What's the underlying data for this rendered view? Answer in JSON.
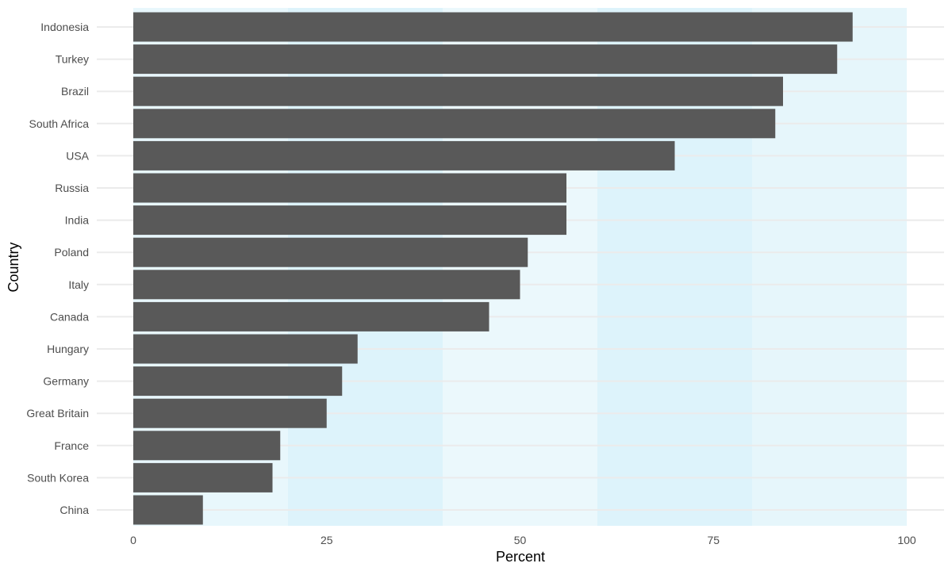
{
  "chart_data": {
    "type": "bar",
    "orientation": "horizontal",
    "xlabel": "Percent",
    "ylabel": "Country",
    "xlim": [
      0,
      100
    ],
    "x_ticks": [
      "0",
      "25",
      "50",
      "75",
      "100"
    ],
    "categories": [
      "Indonesia",
      "Turkey",
      "Brazil",
      "South Africa",
      "USA",
      "Russia",
      "India",
      "Poland",
      "Italy",
      "Canada",
      "Hungary",
      "Germany",
      "Great Britain",
      "France",
      "South Korea",
      "China"
    ],
    "values": [
      93,
      91,
      84,
      83,
      70,
      56,
      56,
      51,
      50,
      46,
      29,
      27,
      25,
      19,
      18,
      9
    ],
    "background_bands": [
      {
        "from": 0,
        "to": 20,
        "color": "#e8f7fc"
      },
      {
        "from": 20,
        "to": 40,
        "color": "#ddf3fb"
      },
      {
        "from": 40,
        "to": 60,
        "color": "#ebf8fc"
      },
      {
        "from": 60,
        "to": 80,
        "color": "#ddf3fb"
      },
      {
        "from": 80,
        "to": 100,
        "color": "#e6f6fb"
      }
    ],
    "grid": true,
    "colors": {
      "bar": "#595959",
      "gridline": "#ebebeb",
      "tick_text": "#4d4d4d",
      "title_text": "#000000"
    }
  }
}
